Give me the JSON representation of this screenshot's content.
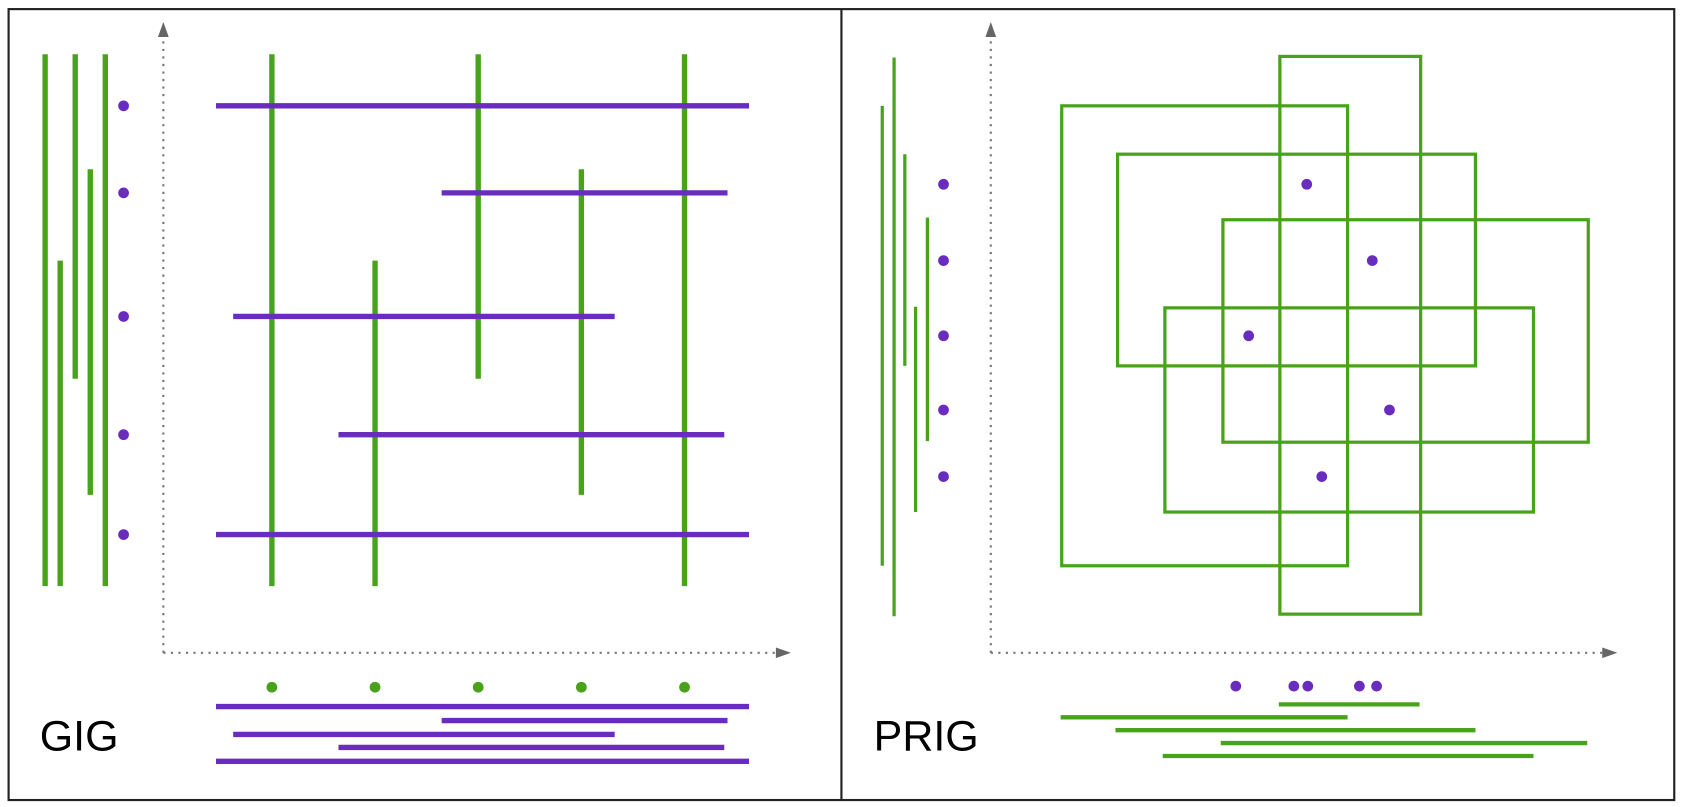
{
  "panels": [
    {
      "label": "GIG"
    },
    {
      "label": "PRIG"
    }
  ]
}
